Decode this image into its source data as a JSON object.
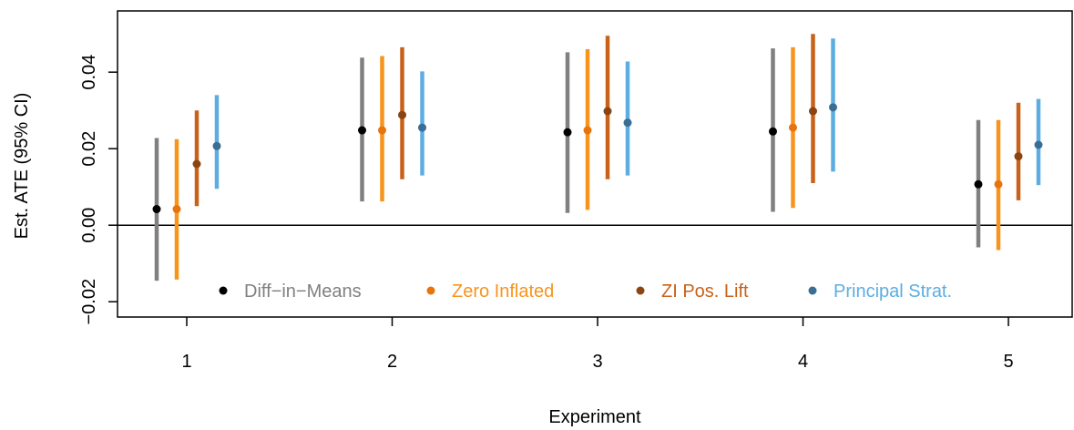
{
  "chart_data": {
    "type": "scatter",
    "xlabel": "Experiment",
    "ylabel": "Est. ATE (95% CI)",
    "x_categories": [
      "1",
      "2",
      "3",
      "4",
      "5"
    ],
    "ylim": [
      -0.024,
      0.056
    ],
    "yticks": [
      -0.02,
      0.0,
      0.02,
      0.04
    ],
    "ytick_labels": [
      "−0.02",
      "0.00",
      "0.02",
      "0.04"
    ],
    "reference_line_y": 0,
    "legend_position": "bottom",
    "series": [
      {
        "name": "Diff−in−Means",
        "point_color": "#000000",
        "interval_color": "#808080",
        "points": [
          {
            "x": "1",
            "estimate": 0.0042,
            "lower": -0.0145,
            "upper": 0.0228
          },
          {
            "x": "2",
            "estimate": 0.0248,
            "lower": 0.0062,
            "upper": 0.0438
          },
          {
            "x": "3",
            "estimate": 0.0243,
            "lower": 0.0032,
            "upper": 0.0452
          },
          {
            "x": "4",
            "estimate": 0.0245,
            "lower": 0.0035,
            "upper": 0.0462
          },
          {
            "x": "5",
            "estimate": 0.0107,
            "lower": -0.0058,
            "upper": 0.0275
          }
        ]
      },
      {
        "name": "Zero Inflated",
        "point_color": "#E8740C",
        "interval_color": "#F7941D",
        "points": [
          {
            "x": "1",
            "estimate": 0.0042,
            "lower": -0.0142,
            "upper": 0.0225
          },
          {
            "x": "2",
            "estimate": 0.0248,
            "lower": 0.0062,
            "upper": 0.0442
          },
          {
            "x": "3",
            "estimate": 0.0248,
            "lower": 0.004,
            "upper": 0.046
          },
          {
            "x": "4",
            "estimate": 0.0255,
            "lower": 0.0045,
            "upper": 0.0465
          },
          {
            "x": "5",
            "estimate": 0.0107,
            "lower": -0.0065,
            "upper": 0.0275
          }
        ]
      },
      {
        "name": "ZI Pos. Lift",
        "point_color": "#8B4513",
        "interval_color": "#C8621A",
        "points": [
          {
            "x": "1",
            "estimate": 0.016,
            "lower": 0.005,
            "upper": 0.03
          },
          {
            "x": "2",
            "estimate": 0.0288,
            "lower": 0.012,
            "upper": 0.0465
          },
          {
            "x": "3",
            "estimate": 0.0298,
            "lower": 0.012,
            "upper": 0.0495
          },
          {
            "x": "4",
            "estimate": 0.0298,
            "lower": 0.011,
            "upper": 0.05
          },
          {
            "x": "5",
            "estimate": 0.018,
            "lower": 0.0065,
            "upper": 0.032
          }
        ]
      },
      {
        "name": "Principal Strat.",
        "point_color": "#3A6E94",
        "interval_color": "#5DADE2",
        "points": [
          {
            "x": "1",
            "estimate": 0.0207,
            "lower": 0.0095,
            "upper": 0.034
          },
          {
            "x": "2",
            "estimate": 0.0255,
            "lower": 0.013,
            "upper": 0.0402
          },
          {
            "x": "3",
            "estimate": 0.0268,
            "lower": 0.013,
            "upper": 0.0428
          },
          {
            "x": "4",
            "estimate": 0.0308,
            "lower": 0.014,
            "upper": 0.0488
          },
          {
            "x": "5",
            "estimate": 0.021,
            "lower": 0.0105,
            "upper": 0.033
          }
        ]
      }
    ]
  }
}
